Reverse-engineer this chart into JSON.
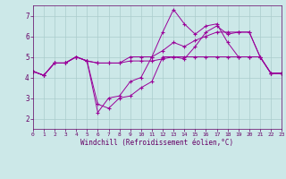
{
  "xlabel": "Windchill (Refroidissement éolien,°C)",
  "ylabel": "",
  "bg_color": "#cce8e8",
  "line_color": "#990099",
  "grid_color": "#aacccc",
  "xlim": [
    0,
    23
  ],
  "ylim": [
    1.5,
    7.5
  ],
  "yticks": [
    2,
    3,
    4,
    5,
    6,
    7
  ],
  "xticks": [
    0,
    1,
    2,
    3,
    4,
    5,
    6,
    7,
    8,
    9,
    10,
    11,
    12,
    13,
    14,
    15,
    16,
    17,
    18,
    19,
    20,
    21,
    22,
    23
  ],
  "xtick_labels": [
    "0",
    "1",
    "2",
    "3",
    "4",
    "5",
    "6",
    "7",
    "8",
    "9",
    "10",
    "11",
    "12",
    "13",
    "14",
    "15",
    "16",
    "17",
    "18",
    "19",
    "20",
    "21",
    "22",
    "23"
  ],
  "series": [
    [
      4.3,
      4.1,
      4.7,
      4.7,
      5.0,
      4.8,
      4.7,
      4.7,
      4.7,
      4.8,
      4.8,
      4.8,
      4.9,
      5.0,
      5.0,
      5.0,
      5.0,
      5.0,
      5.0,
      5.0,
      5.0,
      5.0,
      4.2,
      4.2
    ],
    [
      4.3,
      4.1,
      4.7,
      4.7,
      5.0,
      4.8,
      2.7,
      2.5,
      3.0,
      3.1,
      3.5,
      3.8,
      5.0,
      5.0,
      4.9,
      5.5,
      6.2,
      6.5,
      6.1,
      6.2,
      6.2,
      5.0,
      4.2,
      4.2
    ],
    [
      4.3,
      4.1,
      4.7,
      4.7,
      5.0,
      4.8,
      2.3,
      3.0,
      3.1,
      3.8,
      4.0,
      5.0,
      6.2,
      7.3,
      6.6,
      6.1,
      6.5,
      6.6,
      5.7,
      5.0,
      5.0,
      5.0,
      4.2,
      4.2
    ],
    [
      4.3,
      4.1,
      4.7,
      4.7,
      5.0,
      4.8,
      4.7,
      4.7,
      4.7,
      5.0,
      5.0,
      5.0,
      5.3,
      5.7,
      5.5,
      5.8,
      6.0,
      6.2,
      6.2,
      6.2,
      6.2,
      5.0,
      4.2,
      4.2
    ]
  ]
}
